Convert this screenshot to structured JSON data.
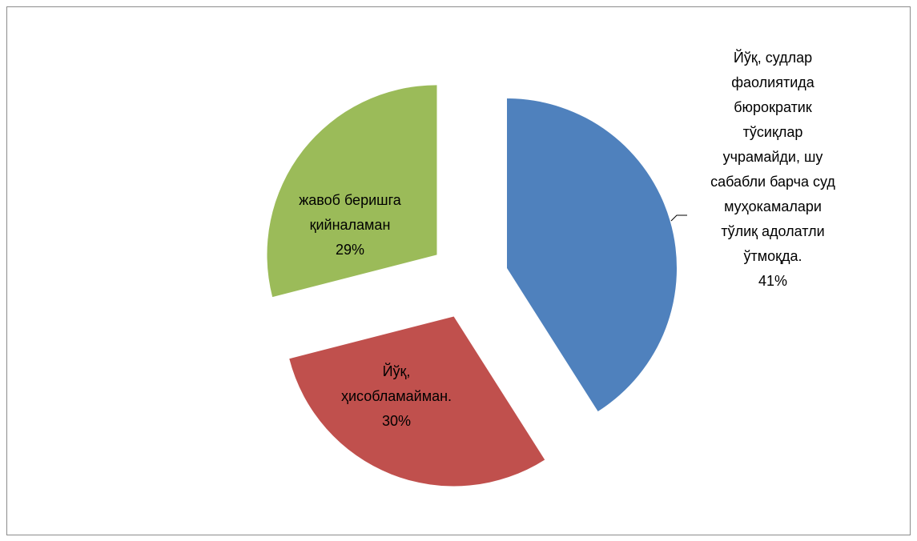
{
  "chart_data": {
    "type": "pie",
    "categories": [
      "Йўқ, судлар фаолиятида бюрократик тўсиқлар учрамайди, шу сабабли барча суд муҳокамалари тўлиқ адолатли ўтмоқда.",
      "Йўқ, ҳисобламайман.",
      "жавоб беришга қийналаман"
    ],
    "values": [
      41,
      30,
      29
    ],
    "value_labels": [
      "41%",
      "30%",
      "29%"
    ],
    "colors": [
      "#4f81bd",
      "#c0504d",
      "#9bbb59"
    ]
  }
}
